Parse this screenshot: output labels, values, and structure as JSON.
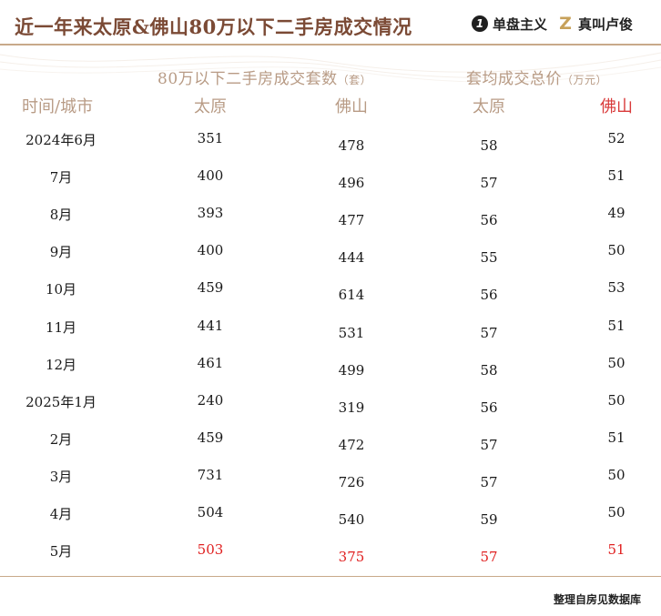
{
  "header": {
    "title": "近一年来太原&佛山80万以下二手房成交情况",
    "brand1": "单盘主义",
    "brand2": "真叫卢俊"
  },
  "chart_data": {
    "type": "table",
    "group_headers": [
      {
        "label": "80万以下二手房成交套数",
        "unit": "（套）"
      },
      {
        "label": "套均成交总价",
        "unit": "（万元）"
      }
    ],
    "columns": [
      "时间/城市",
      "太原",
      "佛山",
      "太原",
      "佛山"
    ],
    "rows": [
      {
        "period": "2024年6月",
        "ty_count": 351,
        "fs_count": 478,
        "ty_price": 58,
        "fs_price": 52
      },
      {
        "period": "7月",
        "ty_count": 400,
        "fs_count": 496,
        "ty_price": 57,
        "fs_price": 51
      },
      {
        "period": "8月",
        "ty_count": 393,
        "fs_count": 477,
        "ty_price": 56,
        "fs_price": 49
      },
      {
        "period": "9月",
        "ty_count": 400,
        "fs_count": 444,
        "ty_price": 55,
        "fs_price": 50
      },
      {
        "period": "10月",
        "ty_count": 459,
        "fs_count": 614,
        "ty_price": 56,
        "fs_price": 53
      },
      {
        "period": "11月",
        "ty_count": 441,
        "fs_count": 531,
        "ty_price": 57,
        "fs_price": 51
      },
      {
        "period": "12月",
        "ty_count": 461,
        "fs_count": 499,
        "ty_price": 58,
        "fs_price": 50
      },
      {
        "period": "2025年1月",
        "ty_count": 240,
        "fs_count": 319,
        "ty_price": 56,
        "fs_price": 50
      },
      {
        "period": "2月",
        "ty_count": 459,
        "fs_count": 472,
        "ty_price": 57,
        "fs_price": 51
      },
      {
        "period": "3月",
        "ty_count": 731,
        "fs_count": 726,
        "ty_price": 57,
        "fs_price": 50
      },
      {
        "period": "4月",
        "ty_count": 504,
        "fs_count": 540,
        "ty_price": 59,
        "fs_price": 50
      },
      {
        "period": "5月",
        "ty_count": 503,
        "fs_count": 375,
        "ty_price": 57,
        "fs_price": 51
      }
    ],
    "highlight_row": 11,
    "highlight_color": "#e02020"
  },
  "footer": {
    "source": "整理自房见数据库"
  }
}
